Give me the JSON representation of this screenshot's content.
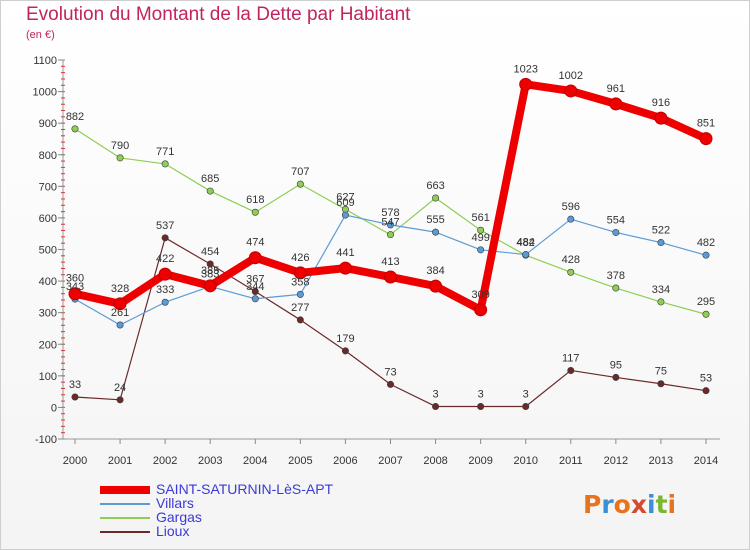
{
  "title": "Evolution du Montant de la Dette par Habitant",
  "subtitle": "(en €)",
  "logo": {
    "text": "Proxiti",
    "colors": [
      "#e8731c",
      "#3a8fd6",
      "#e8731c",
      "#d64a2e",
      "#3a8fd6",
      "#7ab833",
      "#e8731c"
    ]
  },
  "chart_data": {
    "type": "line",
    "x": [
      "2000",
      "2001",
      "2002",
      "2003",
      "2004",
      "2005",
      "2006",
      "2007",
      "2008",
      "2009",
      "2010",
      "2011",
      "2012",
      "2013",
      "2014"
    ],
    "ylim": [
      -100,
      1100
    ],
    "yticks": [
      "-100",
      "0",
      "100",
      "200",
      "300",
      "400",
      "500",
      "600",
      "700",
      "800",
      "900",
      "1000",
      "1100"
    ],
    "grid": false,
    "legend_position": "bottom-left",
    "series": [
      {
        "name": "SAINT-SATURNIN-LèS-APT",
        "color": "#ee0000",
        "values": [
          360,
          328,
          422,
          385,
          474,
          426,
          441,
          413,
          384,
          309,
          1023,
          1002,
          961,
          916,
          851
        ],
        "labels": [
          "360",
          "328",
          "422",
          "385",
          "474",
          "426",
          "441",
          "413",
          "384",
          "309",
          "1023",
          "1002",
          "961",
          "916",
          "851"
        ]
      },
      {
        "name": "Villars",
        "color": "#5b9bd5",
        "values": [
          343,
          261,
          333,
          383,
          344,
          358,
          609,
          578,
          555,
          499,
          484,
          596,
          554,
          522,
          482
        ],
        "labels": [
          "343",
          "261",
          "333",
          "383",
          "344",
          "358",
          "609",
          "578",
          "555",
          "499",
          "484",
          "596",
          "554",
          "522",
          "482"
        ]
      },
      {
        "name": "Gargas",
        "color": "#8fce55",
        "values": [
          882,
          790,
          771,
          685,
          618,
          707,
          627,
          547,
          663,
          561,
          482,
          428,
          378,
          334,
          295
        ],
        "labels": [
          "882",
          "790",
          "771",
          "685",
          "618",
          "707",
          "627",
          "547",
          "663",
          "561",
          "482",
          "428",
          "378",
          "334",
          "295"
        ]
      },
      {
        "name": "Lioux",
        "color": "#6b2a2a",
        "values": [
          33,
          24,
          537,
          454,
          367,
          277,
          179,
          73,
          3,
          3,
          3,
          117,
          95,
          75,
          53
        ],
        "labels": [
          "33",
          "24",
          "537",
          "454",
          "367",
          "277",
          "179",
          "73",
          "3",
          "3",
          "3",
          "117",
          "95",
          "75",
          "53"
        ]
      }
    ]
  }
}
